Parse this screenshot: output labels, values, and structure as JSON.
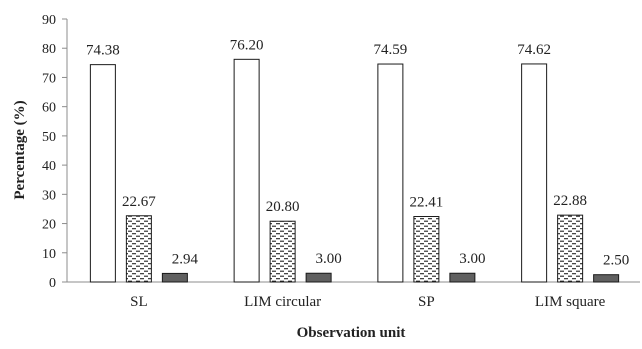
{
  "chart_data": {
    "type": "bar",
    "title": "",
    "xlabel": "Observation unit",
    "ylabel": "Percentage (%)",
    "ylim": [
      0,
      90
    ],
    "yticks": [
      0,
      10,
      20,
      30,
      40,
      50,
      60,
      70,
      80,
      90
    ],
    "categories": [
      "SL",
      "LIM circular",
      "SP",
      "LIM square"
    ],
    "series": [
      {
        "values": [
          74.38,
          76.2,
          74.59,
          74.62
        ],
        "labels": [
          "74.38",
          "76.20",
          "74.59",
          "74.62"
        ],
        "fill": "#ffffff",
        "pattern": "none"
      },
      {
        "values": [
          22.67,
          20.8,
          22.41,
          22.88
        ],
        "labels": [
          "22.67",
          "20.80",
          "22.41",
          "22.88"
        ],
        "fill": "#ffffff",
        "pattern": "dashed-hatch"
      },
      {
        "values": [
          2.94,
          3.0,
          3.0,
          2.5
        ],
        "labels": [
          "2.94",
          "3.00",
          "3.00",
          "2.50"
        ],
        "fill": "#606060",
        "pattern": "none"
      }
    ],
    "grid": false,
    "legend": "none"
  }
}
